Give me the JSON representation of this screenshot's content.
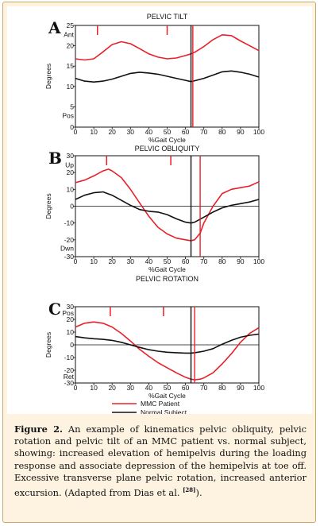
{
  "chart_data": [
    {
      "type": "line",
      "panel_letter": "A",
      "title": "PELVIC TILT",
      "xlabel": "%Gait Cycle",
      "ylabel": "Degrees",
      "xlim": [
        0,
        100
      ],
      "ylim": [
        0,
        25
      ],
      "x_ticks": [
        0,
        10,
        20,
        30,
        40,
        50,
        60,
        70,
        80,
        90,
        100
      ],
      "y_ticks": [
        0,
        5,
        10,
        15,
        20,
        25
      ],
      "direction_labels": [
        {
          "text": "Ant",
          "y": 22.8
        },
        {
          "text": "Pos",
          "y": 2.8
        }
      ],
      "zero_line": false,
      "series": [
        {
          "name": "MMC Patient",
          "color": "#e8202a",
          "x": [
            0,
            5,
            10,
            15,
            20,
            25,
            30,
            35,
            40,
            45,
            50,
            55,
            60,
            63,
            65,
            70,
            75,
            80,
            85,
            90,
            95,
            100
          ],
          "values": [
            16.8,
            16.5,
            16.8,
            18.5,
            20.3,
            21.0,
            20.5,
            19.3,
            18.0,
            17.2,
            16.8,
            17.0,
            17.6,
            18.0,
            18.4,
            19.8,
            21.5,
            22.7,
            22.5,
            21.2,
            20.0,
            18.8
          ]
        },
        {
          "name": "Normal Subject",
          "color": "#111111",
          "x": [
            0,
            5,
            10,
            15,
            20,
            25,
            30,
            35,
            40,
            45,
            50,
            55,
            60,
            63,
            65,
            70,
            75,
            80,
            85,
            90,
            95,
            100
          ],
          "values": [
            12.0,
            11.3,
            11.1,
            11.3,
            11.8,
            12.5,
            13.2,
            13.5,
            13.3,
            13.0,
            12.5,
            12.0,
            11.5,
            11.2,
            11.4,
            12.0,
            12.8,
            13.6,
            13.8,
            13.5,
            13.0,
            12.3
          ]
        }
      ],
      "event_ticks": [
        {
          "x": 12,
          "color": "#e8202a"
        },
        {
          "x": 50,
          "color": "#e8202a"
        }
      ],
      "toe_off_lines": [
        {
          "x": 63,
          "color": "#111111"
        },
        {
          "x": 64,
          "color": "#e8202a"
        }
      ]
    },
    {
      "type": "line",
      "panel_letter": "B",
      "title": "PELVIC OBLIQUITY",
      "xlabel": "%Gait Cycle",
      "ylabel": "Degrees",
      "xlim": [
        0,
        100
      ],
      "ylim": [
        -30,
        30
      ],
      "x_ticks": [
        0,
        10,
        20,
        30,
        40,
        50,
        60,
        70,
        80,
        90,
        100
      ],
      "y_ticks": [
        -30,
        -20,
        -10,
        0,
        10,
        20,
        30
      ],
      "direction_labels": [
        {
          "text": "Up",
          "y": 24.5
        },
        {
          "text": "Dwn",
          "y": -25.0
        }
      ],
      "zero_line": true,
      "series": [
        {
          "name": "MMC Patient",
          "color": "#e8202a",
          "x": [
            0,
            5,
            10,
            15,
            18,
            20,
            25,
            30,
            35,
            40,
            45,
            50,
            55,
            60,
            63,
            65,
            68,
            70,
            75,
            80,
            85,
            90,
            95,
            100
          ],
          "values": [
            14.0,
            15.5,
            18.0,
            21.0,
            22.0,
            21.0,
            17.0,
            10.0,
            2.0,
            -6.0,
            -12.5,
            -16.5,
            -19.0,
            -20.0,
            -20.5,
            -20.0,
            -16.0,
            -10.0,
            0.0,
            7.5,
            10.0,
            11.0,
            12.0,
            14.5
          ]
        },
        {
          "name": "Normal Subject",
          "color": "#111111",
          "x": [
            0,
            5,
            10,
            15,
            20,
            25,
            30,
            35,
            40,
            45,
            50,
            55,
            60,
            63,
            65,
            70,
            75,
            80,
            85,
            90,
            95,
            100
          ],
          "values": [
            4.0,
            6.5,
            8.0,
            8.5,
            6.5,
            3.5,
            0.5,
            -2.0,
            -3.0,
            -3.5,
            -5.0,
            -7.5,
            -9.5,
            -10.0,
            -9.5,
            -6.5,
            -3.5,
            -1.0,
            0.5,
            1.5,
            2.5,
            4.0
          ]
        }
      ],
      "event_ticks": [
        {
          "x": 17,
          "color": "#e8202a"
        },
        {
          "x": 52,
          "color": "#e8202a"
        }
      ],
      "toe_off_lines": [
        {
          "x": 63,
          "color": "#111111"
        },
        {
          "x": 68,
          "color": "#e8202a"
        }
      ]
    },
    {
      "type": "line",
      "panel_letter": "C",
      "title": "PELVIC ROTATION",
      "xlabel": "%Gait Cycle",
      "ylabel": "Degrees",
      "xlim": [
        0,
        100
      ],
      "ylim": [
        -30,
        30
      ],
      "x_ticks": [
        0,
        10,
        20,
        30,
        40,
        50,
        60,
        70,
        80,
        90,
        100
      ],
      "y_ticks": [
        -30,
        -20,
        -10,
        0,
        10,
        20,
        30
      ],
      "direction_labels": [
        {
          "text": "Pos",
          "y": 25.0
        },
        {
          "text": "Ret",
          "y": -25.0
        }
      ],
      "zero_line": true,
      "series": [
        {
          "name": "MMC Patient",
          "color": "#e8202a",
          "x": [
            0,
            5,
            10,
            15,
            20,
            25,
            30,
            35,
            40,
            45,
            50,
            55,
            60,
            63,
            65,
            68,
            70,
            75,
            80,
            85,
            90,
            95,
            100
          ],
          "values": [
            14.0,
            17.0,
            18.0,
            17.0,
            14.0,
            9.0,
            3.0,
            -3.5,
            -9.0,
            -14.0,
            -18.0,
            -22.0,
            -25.5,
            -27.0,
            -27.5,
            -27.0,
            -26.0,
            -22.0,
            -15.0,
            -7.0,
            2.0,
            9.0,
            13.5
          ]
        },
        {
          "name": "Normal Subject",
          "color": "#111111",
          "x": [
            0,
            5,
            10,
            15,
            20,
            25,
            30,
            35,
            40,
            45,
            50,
            55,
            60,
            63,
            65,
            70,
            75,
            80,
            85,
            90,
            95,
            100
          ],
          "values": [
            6.5,
            5.5,
            4.8,
            4.3,
            3.5,
            2.0,
            0.0,
            -2.0,
            -3.8,
            -5.0,
            -5.8,
            -6.2,
            -6.5,
            -6.5,
            -6.2,
            -5.0,
            -3.0,
            0.5,
            3.5,
            6.0,
            7.5,
            8.5
          ]
        }
      ],
      "event_ticks": [
        {
          "x": 19,
          "color": "#e8202a"
        },
        {
          "x": 48,
          "color": "#e8202a"
        }
      ],
      "toe_off_lines": [
        {
          "x": 63,
          "color": "#111111"
        },
        {
          "x": 65,
          "color": "#e8202a"
        }
      ]
    }
  ],
  "legend": {
    "items": [
      {
        "label": "MMC Patient",
        "color": "#e8202a"
      },
      {
        "label": "Normal Subject",
        "color": "#111111"
      }
    ]
  },
  "caption": {
    "label": "Figure 2.",
    "text": " An example of kinematics pelvic obliquity, pelvic rotation and pelvic tilt of an MMC patient vs. normal subject, showing: increased elevation of hemipelvis during the loading response and associate depression of the hemipelvis at toe off. Excessive transverse plane pelvic rotation, increased anterior excursion. (Adapted from Dias et al. ",
    "ref": "[28]",
    "end": ")."
  }
}
